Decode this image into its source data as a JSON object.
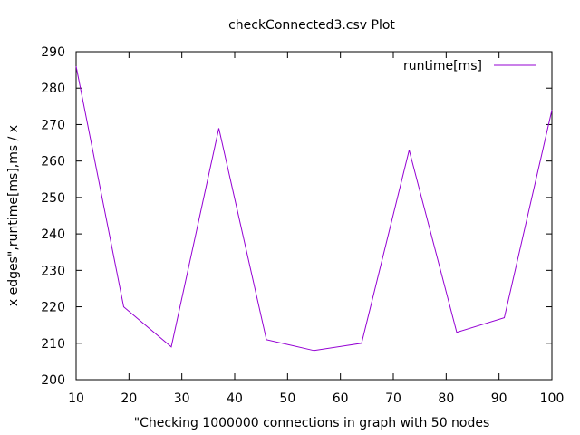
{
  "chart_data": {
    "type": "line",
    "title": "checkConnected3.csv Plot",
    "xlabel": "\"Checking 1000000 connections in graph with 50 nodes",
    "ylabel": "x edges\",runtime[ms],ms / x",
    "xlim": [
      10,
      100
    ],
    "ylim": [
      200,
      290
    ],
    "x_ticks": [
      10,
      20,
      30,
      40,
      50,
      60,
      70,
      80,
      90,
      100
    ],
    "y_ticks": [
      200,
      210,
      220,
      230,
      240,
      250,
      260,
      270,
      280,
      290
    ],
    "grid": false,
    "legend_position": "top-right",
    "series": [
      {
        "name": "runtime[ms]",
        "color": "#9400d3",
        "x": [
          10,
          19,
          28,
          37,
          46,
          55,
          64,
          73,
          82,
          91,
          100
        ],
        "y": [
          286,
          220,
          209,
          269,
          211,
          208,
          210,
          263,
          213,
          217,
          274
        ]
      }
    ]
  }
}
